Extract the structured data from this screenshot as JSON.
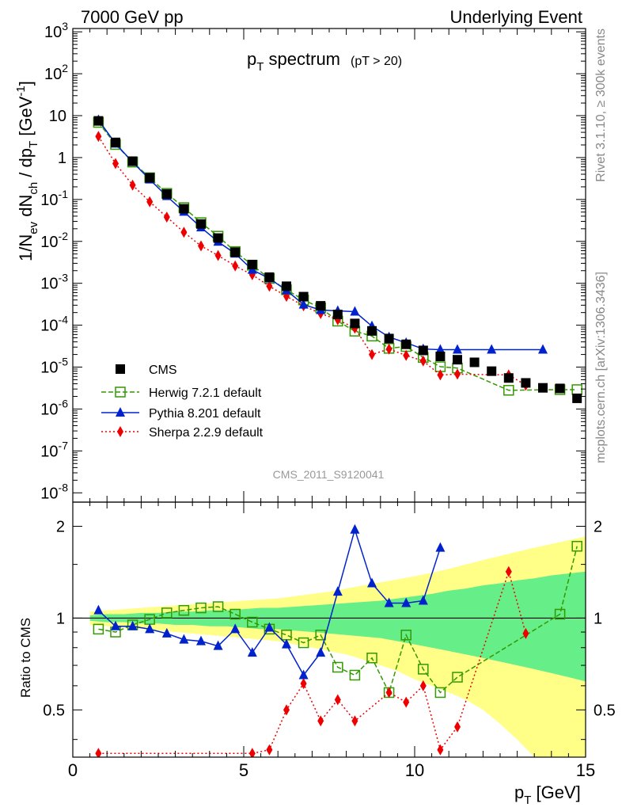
{
  "header": {
    "left": "7000 GeV pp",
    "right": "Underlying Event"
  },
  "side_text": {
    "rivet": "Rivet 3.1.10, ≥ 300k events",
    "mcplots": "mcplots.cern.ch [arXiv:1306.3436]"
  },
  "watermark": "CMS_2011_S9120041",
  "chart_data": [
    {
      "type": "scatter",
      "title": "p_T spectrum",
      "title_suffix": "(pT > 20)",
      "ylabel": "1/N_ev dN_ch / dp_T [GeV^-1]",
      "xlim": [
        0,
        15
      ],
      "ylim": [
        6e-09,
        1200
      ],
      "yscale": "log",
      "ytick_labels": [
        "10^-8",
        "10^-7",
        "10^-6",
        "10^-5",
        "10^-4",
        "10^-3",
        "10^-2",
        "10^-1",
        "1",
        "10",
        "10^2",
        "10^3"
      ],
      "legend_position": "bottom-left",
      "series": [
        {
          "name": "CMS",
          "color": "#000000",
          "marker": "square-filled",
          "x": [
            0.75,
            1.25,
            1.75,
            2.25,
            2.75,
            3.25,
            3.75,
            4.25,
            4.75,
            5.25,
            5.75,
            6.25,
            6.75,
            7.25,
            7.75,
            8.25,
            8.75,
            9.25,
            9.75,
            10.25,
            10.75,
            11.25,
            11.75,
            12.25,
            12.75,
            13.25,
            13.75,
            14.25,
            14.75
          ],
          "y": [
            7.5,
            2.3,
            0.82,
            0.33,
            0.135,
            0.06,
            0.026,
            0.012,
            0.0055,
            0.0028,
            0.0014,
            0.00085,
            0.00048,
            0.00029,
            0.00018,
            0.00011,
            7.3e-05,
            4.8e-05,
            3.5e-05,
            2.5e-05,
            1.8e-05,
            1.5e-05,
            1.3e-05,
            8e-06,
            5.5e-06,
            4.2e-06,
            3.2e-06,
            3.1e-06,
            1.8e-06
          ]
        },
        {
          "name": "Herwig 7.2.1 default",
          "color": "#339900",
          "marker": "square-open",
          "line": "dashed",
          "x": [
            0.75,
            1.25,
            1.75,
            2.25,
            2.75,
            3.25,
            3.75,
            4.25,
            4.75,
            5.25,
            5.75,
            6.25,
            6.75,
            7.25,
            7.75,
            8.25,
            8.75,
            9.25,
            9.75,
            10.25,
            10.75,
            11.25,
            12.75,
            14.25,
            14.75
          ],
          "y": [
            6.9,
            2.05,
            0.78,
            0.33,
            0.14,
            0.064,
            0.028,
            0.0133,
            0.0057,
            0.0027,
            0.0013,
            0.0007,
            0.0004,
            0.00026,
            0.000125,
            7.2e-05,
            5.5e-05,
            2.8e-05,
            3.1e-05,
            1.7e-05,
            1.02e-05,
            9.5e-06,
            2.8e-06,
            2.9e-06,
            2.9e-06
          ]
        },
        {
          "name": "Pythia 8.201 default",
          "color": "#0022cc",
          "marker": "triangle-filled",
          "line": "solid",
          "x": [
            0.75,
            1.25,
            1.75,
            2.25,
            2.75,
            3.25,
            3.75,
            4.25,
            4.75,
            5.25,
            5.75,
            6.25,
            6.75,
            7.25,
            7.75,
            8.25,
            8.75,
            9.25,
            9.75,
            10.25,
            10.75,
            11.25,
            12.25,
            13.75
          ],
          "y": [
            7.9,
            2.15,
            0.78,
            0.3,
            0.12,
            0.051,
            0.0215,
            0.0098,
            0.0051,
            0.0021,
            0.0013,
            0.00068,
            0.00031,
            0.00023,
            0.00022,
            0.00021,
            9.5e-05,
            5.2e-05,
            3.8e-05,
            2.7e-05,
            2.6e-05,
            2.6e-05,
            2.6e-05,
            2.6e-05
          ]
        },
        {
          "name": "Sherpa 2.2.9 default",
          "color": "#ee0000",
          "marker": "diamond-filled",
          "line": "dotted",
          "x": [
            0.75,
            1.25,
            1.75,
            2.25,
            2.75,
            3.25,
            3.75,
            4.25,
            4.75,
            5.25,
            5.75,
            6.25,
            6.75,
            7.25,
            7.75,
            8.25,
            8.75,
            9.25,
            9.75,
            10.25,
            10.75,
            11.25,
            12.75,
            13.25
          ],
          "y": [
            3.2,
            0.72,
            0.22,
            0.088,
            0.038,
            0.0165,
            0.0078,
            0.0046,
            0.0026,
            0.0016,
            0.00085,
            0.00049,
            0.00029,
            0.00019,
            0.000135,
            8.5e-05,
            2e-05,
            2.7e-05,
            1.9e-05,
            1.4e-05,
            6.5e-06,
            6.8e-06,
            6.5e-06,
            3.7e-06
          ]
        }
      ]
    },
    {
      "type": "scatter",
      "ylabel": "Ratio to CMS",
      "xlabel": "p_T [GeV]",
      "xlim": [
        0,
        15
      ],
      "ylim": [
        0.35,
        2.4
      ],
      "yscale": "log",
      "xticks": [
        0,
        5,
        10,
        15
      ],
      "yticks": [
        0.5,
        1,
        2
      ],
      "band_inner": {
        "color": "#66ee88",
        "x": [
          0.5,
          1,
          1.5,
          2,
          2.5,
          3,
          3.5,
          4,
          4.5,
          5,
          5.5,
          6,
          6.5,
          7,
          7.5,
          8,
          8.5,
          9,
          9.5,
          10,
          10.5,
          11,
          11.5,
          12,
          12.5,
          13,
          13.5,
          14,
          14.5,
          15
        ],
        "lo": [
          0.98,
          0.97,
          0.97,
          0.96,
          0.96,
          0.95,
          0.95,
          0.94,
          0.94,
          0.93,
          0.92,
          0.92,
          0.91,
          0.9,
          0.89,
          0.88,
          0.87,
          0.86,
          0.84,
          0.82,
          0.8,
          0.78,
          0.76,
          0.74,
          0.72,
          0.7,
          0.68,
          0.66,
          0.64,
          0.62
        ],
        "hi": [
          1.02,
          1.03,
          1.03,
          1.04,
          1.04,
          1.05,
          1.05,
          1.06,
          1.06,
          1.07,
          1.08,
          1.08,
          1.09,
          1.1,
          1.11,
          1.12,
          1.13,
          1.14,
          1.16,
          1.18,
          1.2,
          1.23,
          1.25,
          1.28,
          1.3,
          1.33,
          1.35,
          1.38,
          1.4,
          1.42
        ]
      },
      "band_outer": {
        "color": "#ffff88",
        "x": [
          0.5,
          1,
          1.5,
          2,
          2.5,
          3,
          3.5,
          4,
          4.5,
          5,
          5.5,
          6,
          6.5,
          7,
          7.5,
          8,
          8.5,
          9,
          9.5,
          10,
          10.5,
          11,
          11.5,
          12,
          12.5,
          13,
          13.5,
          14,
          14.5,
          15
        ],
        "lo": [
          0.95,
          0.94,
          0.93,
          0.92,
          0.91,
          0.9,
          0.89,
          0.88,
          0.87,
          0.86,
          0.85,
          0.84,
          0.82,
          0.8,
          0.78,
          0.76,
          0.73,
          0.7,
          0.67,
          0.63,
          0.6,
          0.57,
          0.54,
          0.5,
          0.45,
          0.4,
          0.35,
          0.35,
          0.35,
          0.35
        ],
        "hi": [
          1.05,
          1.06,
          1.07,
          1.08,
          1.09,
          1.1,
          1.11,
          1.12,
          1.13,
          1.14,
          1.15,
          1.16,
          1.18,
          1.2,
          1.22,
          1.25,
          1.28,
          1.31,
          1.34,
          1.37,
          1.41,
          1.45,
          1.5,
          1.55,
          1.6,
          1.65,
          1.7,
          1.75,
          1.8,
          1.85
        ]
      },
      "series": [
        {
          "name": "Herwig 7.2.1 default",
          "color": "#339900",
          "marker": "square-open",
          "line": "dashed",
          "x": [
            0.75,
            1.25,
            1.75,
            2.25,
            2.75,
            3.25,
            3.75,
            4.25,
            4.75,
            5.25,
            5.75,
            6.25,
            6.75,
            7.25,
            7.75,
            8.25,
            8.75,
            9.25,
            9.75,
            10.25,
            10.75,
            11.25,
            14.25,
            14.75
          ],
          "y": [
            0.92,
            0.9,
            0.95,
            0.99,
            1.04,
            1.06,
            1.08,
            1.09,
            1.03,
            0.97,
            0.92,
            0.88,
            0.83,
            0.88,
            0.69,
            0.65,
            0.74,
            0.57,
            0.88,
            0.68,
            0.57,
            0.64,
            1.03,
            1.72
          ]
        },
        {
          "name": "Pythia 8.201 default",
          "color": "#0022cc",
          "marker": "triangle-filled",
          "line": "solid",
          "x": [
            0.75,
            1.25,
            1.75,
            2.25,
            2.75,
            3.25,
            3.75,
            4.25,
            4.75,
            5.25,
            5.75,
            6.25,
            6.75,
            7.25,
            7.75,
            8.25,
            8.75,
            9.25,
            9.75,
            10.25,
            10.75
          ],
          "y": [
            1.06,
            0.94,
            0.94,
            0.92,
            0.89,
            0.85,
            0.84,
            0.81,
            0.92,
            0.77,
            0.93,
            0.82,
            0.65,
            0.77,
            1.22,
            1.95,
            1.3,
            1.12,
            1.12,
            1.14,
            1.7
          ]
        },
        {
          "name": "Sherpa 2.2.9 default",
          "color": "#ee0000",
          "marker": "diamond-filled",
          "line": "dotted",
          "x": [
            0.75,
            5.25,
            5.75,
            6.25,
            6.75,
            7.25,
            7.75,
            8.25,
            9.25,
            9.75,
            10.25,
            10.75,
            11.25,
            12.75,
            13.25
          ],
          "y": [
            0.36,
            0.36,
            0.37,
            0.5,
            0.61,
            0.46,
            0.54,
            0.46,
            0.57,
            0.53,
            0.6,
            0.37,
            0.44,
            1.42,
            0.89
          ]
        }
      ]
    }
  ]
}
